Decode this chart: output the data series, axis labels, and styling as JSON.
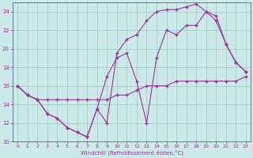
{
  "bg_color": "#cce8e8",
  "line_color": "#993399",
  "grid_color": "#99ccbb",
  "xlabel": "Windchill (Refroidissement éolien,°C)",
  "xlim": [
    -0.5,
    23.5
  ],
  "ylim": [
    10,
    25
  ],
  "yticks": [
    10,
    12,
    14,
    16,
    18,
    20,
    22,
    24
  ],
  "xticks": [
    0,
    1,
    2,
    3,
    4,
    5,
    6,
    7,
    8,
    9,
    10,
    11,
    12,
    13,
    14,
    15,
    16,
    17,
    18,
    19,
    20,
    21,
    22,
    23
  ],
  "line1_x": [
    0,
    1,
    2,
    3,
    4,
    5,
    6,
    7,
    8,
    9,
    10,
    11,
    12,
    13,
    14,
    15,
    16,
    17,
    18,
    19,
    20,
    21,
    22,
    23
  ],
  "line1_y": [
    16.0,
    15.0,
    14.5,
    13.0,
    12.5,
    11.5,
    11.0,
    10.5,
    13.5,
    12.0,
    19.5,
    21.0,
    21.5,
    23.0,
    24.0,
    24.2,
    24.2,
    24.5,
    24.8,
    24.0,
    23.5,
    20.5,
    18.5,
    17.5
  ],
  "line2_x": [
    0,
    1,
    2,
    3,
    4,
    5,
    6,
    7,
    8,
    9,
    10,
    11,
    12,
    13,
    14,
    15,
    16,
    17,
    18,
    19,
    20,
    21,
    22,
    23
  ],
  "line2_y": [
    16.0,
    15.0,
    14.5,
    13.0,
    12.5,
    11.5,
    11.0,
    10.5,
    13.5,
    17.0,
    19.0,
    19.5,
    16.5,
    12.0,
    19.0,
    22.0,
    21.5,
    22.5,
    22.5,
    24.0,
    23.0,
    20.5,
    18.5,
    17.5
  ],
  "line3_x": [
    0,
    1,
    2,
    3,
    4,
    5,
    6,
    7,
    8,
    9,
    10,
    11,
    12,
    13,
    14,
    15,
    16,
    17,
    18,
    19,
    20,
    21,
    22,
    23
  ],
  "line3_y": [
    16.0,
    15.0,
    14.5,
    14.5,
    14.5,
    14.5,
    14.5,
    14.5,
    14.5,
    14.5,
    15.0,
    15.0,
    15.5,
    16.0,
    16.0,
    16.0,
    16.5,
    16.5,
    16.5,
    16.5,
    16.5,
    16.5,
    16.5,
    17.0
  ]
}
